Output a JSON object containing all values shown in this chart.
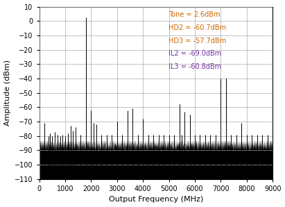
{
  "xlabel": "Output Frequency (MHz)",
  "ylabel": "Amplitude (dBm)",
  "xlim": [
    0,
    9000
  ],
  "ylim": [
    -110,
    10
  ],
  "yticks": [
    10,
    0,
    -10,
    -20,
    -30,
    -40,
    -50,
    -60,
    -70,
    -80,
    -90,
    -100,
    -110
  ],
  "xticks": [
    0,
    1000,
    2000,
    3000,
    4000,
    5000,
    6000,
    7000,
    8000,
    9000
  ],
  "noise_floor": -90,
  "legend_labels": [
    "Tone = 2.6dBm",
    "HD2 = -60.7dBm",
    "HD3 = -57.7dBm",
    "IL2 = -69.0dBm",
    "IL3 = -60.8dBm"
  ],
  "legend_colors": [
    "#cc6600",
    "#cc6600",
    "#cc6600",
    "#7030a0",
    "#7030a0"
  ],
  "spurs": [
    {
      "freq": 1800,
      "amp": 2.6
    },
    {
      "freq": 3600,
      "amp": -60.7
    },
    {
      "freq": 5400,
      "amp": -57.7
    },
    {
      "freq": 7200,
      "amp": -40.0
    },
    {
      "freq": 9000,
      "amp": -52.0
    },
    {
      "freq": 200,
      "amp": -71
    },
    {
      "freq": 350,
      "amp": -80
    },
    {
      "freq": 400,
      "amp": -78
    },
    {
      "freq": 500,
      "amp": -80
    },
    {
      "freq": 600,
      "amp": -77
    },
    {
      "freq": 700,
      "amp": -79
    },
    {
      "freq": 800,
      "amp": -80
    },
    {
      "freq": 900,
      "amp": -79
    },
    {
      "freq": 1000,
      "amp": -80
    },
    {
      "freq": 1100,
      "amp": -78
    },
    {
      "freq": 1200,
      "amp": -73
    },
    {
      "freq": 1300,
      "amp": -76
    },
    {
      "freq": 1400,
      "amp": -74
    },
    {
      "freq": 1600,
      "amp": -79
    },
    {
      "freq": 2000,
      "amp": -62
    },
    {
      "freq": 2100,
      "amp": -71
    },
    {
      "freq": 2200,
      "amp": -72
    },
    {
      "freq": 2400,
      "amp": -79
    },
    {
      "freq": 2600,
      "amp": -79
    },
    {
      "freq": 2800,
      "amp": -79
    },
    {
      "freq": 3000,
      "amp": -70
    },
    {
      "freq": 3200,
      "amp": -79
    },
    {
      "freq": 3400,
      "amp": -62
    },
    {
      "freq": 3800,
      "amp": -79
    },
    {
      "freq": 4000,
      "amp": -68
    },
    {
      "freq": 4200,
      "amp": -79
    },
    {
      "freq": 4400,
      "amp": -79
    },
    {
      "freq": 4600,
      "amp": -79
    },
    {
      "freq": 4800,
      "amp": -79
    },
    {
      "freq": 5000,
      "amp": -79
    },
    {
      "freq": 5200,
      "amp": -79
    },
    {
      "freq": 5400,
      "amp": -57.7
    },
    {
      "freq": 5500,
      "amp": -79
    },
    {
      "freq": 5600,
      "amp": -63
    },
    {
      "freq": 5800,
      "amp": -65
    },
    {
      "freq": 6000,
      "amp": -79
    },
    {
      "freq": 6200,
      "amp": -79
    },
    {
      "freq": 6400,
      "amp": -79
    },
    {
      "freq": 6600,
      "amp": -79
    },
    {
      "freq": 6800,
      "amp": -79
    },
    {
      "freq": 7000,
      "amp": -40.0
    },
    {
      "freq": 7200,
      "amp": -40.0
    },
    {
      "freq": 7400,
      "amp": -79
    },
    {
      "freq": 7600,
      "amp": -79
    },
    {
      "freq": 7800,
      "amp": -71
    },
    {
      "freq": 8000,
      "amp": -79
    },
    {
      "freq": 8200,
      "amp": -79
    },
    {
      "freq": 8400,
      "amp": -79
    },
    {
      "freq": 8600,
      "amp": -79
    },
    {
      "freq": 8800,
      "amp": -79
    }
  ],
  "bar_color": "#000000",
  "background_color": "#ffffff",
  "grid_color": "#aaaaaa"
}
